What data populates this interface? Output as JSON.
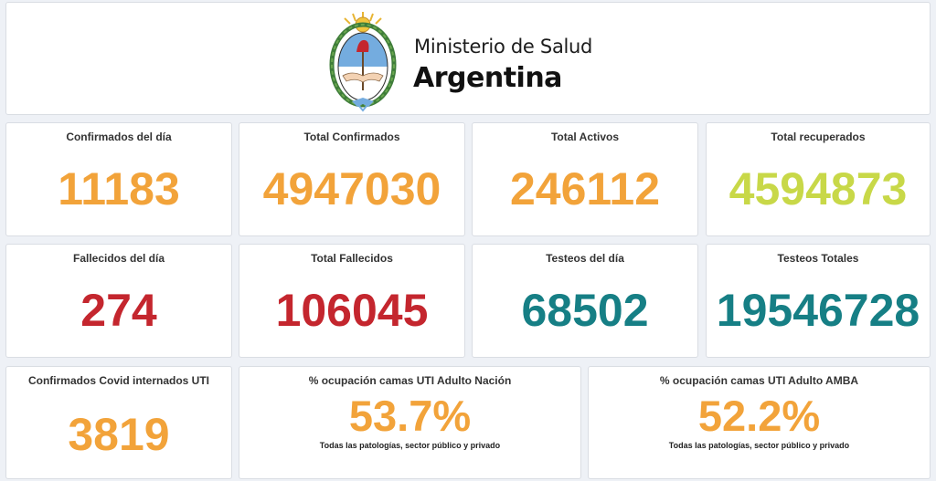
{
  "header": {
    "ministry": "Ministerio de Salud",
    "country": "Argentina",
    "logo_icon": "argentina-coat-of-arms-icon"
  },
  "colors": {
    "orange": "#f2a33a",
    "lime": "#c8d848",
    "red": "#c4262e",
    "teal": "#167f85"
  },
  "cards": {
    "confirmados_dia": {
      "label": "Confirmados del día",
      "value": "11183"
    },
    "total_confirmados": {
      "label": "Total Confirmados",
      "value": "4947030"
    },
    "total_activos": {
      "label": "Total Activos",
      "value": "246112"
    },
    "total_recuperados": {
      "label": "Total recuperados",
      "value": "4594873"
    },
    "fallecidos_dia": {
      "label": "Fallecidos del día",
      "value": "274"
    },
    "total_fallecidos": {
      "label": "Total Fallecidos",
      "value": "106045"
    },
    "testeos_dia": {
      "label": "Testeos del día",
      "value": "68502"
    },
    "testeos_totales": {
      "label": "Testeos Totales",
      "value": "19546728"
    },
    "internados_uti": {
      "label": "Confirmados Covid internados UTI",
      "value": "3819"
    },
    "ocupacion_nacion": {
      "label": "% ocupación camas UTI Adulto Nación",
      "value": "53.7%",
      "sub": "Todas las patologías, sector público y privado"
    },
    "ocupacion_amba": {
      "label": "% ocupación camas UTI Adulto AMBA",
      "value": "52.2%",
      "sub": "Todas las patologías, sector público y privado"
    }
  }
}
